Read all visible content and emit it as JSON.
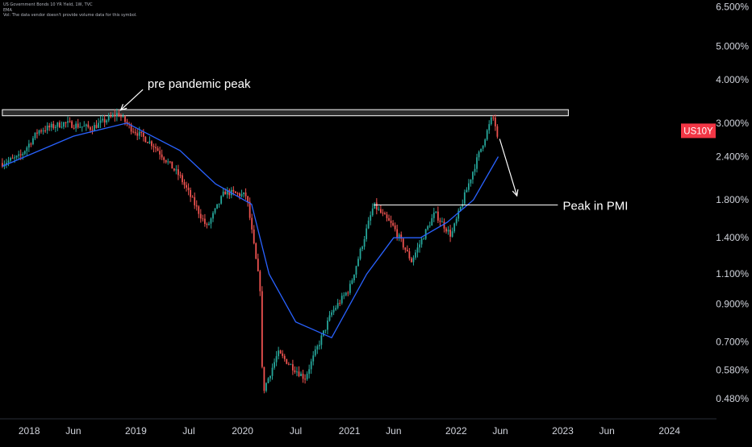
{
  "legend": {
    "symbol_line": "US Government Bonds 10 YR Yield, 1W, TVC",
    "indicator": "EMA",
    "volume_note": "Vol: The data vendor doesn't provide volume data for this symbol."
  },
  "colors": {
    "background": "#000000",
    "up_candle": "#26a69a",
    "down_candle": "#ef5350",
    "ema_line": "#2962ff",
    "axis_text": "#d1d4dc",
    "price_badge": "#f23645",
    "annotation": "#ffffff"
  },
  "chart_data": {
    "type": "candlestick",
    "symbol": "US10Y",
    "timeframe": "1W",
    "y_scale": "log",
    "ylim": [
      0.42,
      6.8
    ],
    "y_ticks": [
      "6.500%",
      "5.000%",
      "4.000%",
      "3.000%",
      "2.400%",
      "1.800%",
      "1.400%",
      "1.100%",
      "0.900%",
      "0.700%",
      "0.580%",
      "0.480%"
    ],
    "x_ticks": [
      "2018",
      "Jun",
      "2019",
      "Jul",
      "2020",
      "Jul",
      "2021",
      "Jun",
      "2022",
      "Jun",
      "2023",
      "Jun",
      "2024"
    ],
    "price_label": "US10Y",
    "path_points": [
      [
        "2017-10-01",
        2.3
      ],
      [
        "2017-12-01",
        2.4
      ],
      [
        "2018-02-01",
        2.85
      ],
      [
        "2018-05-01",
        3.0
      ],
      [
        "2018-08-01",
        2.9
      ],
      [
        "2018-11-01",
        3.2
      ],
      [
        "2018-12-15",
        2.9
      ],
      [
        "2019-03-01",
        2.6
      ],
      [
        "2019-06-01",
        2.1
      ],
      [
        "2019-09-01",
        1.5
      ],
      [
        "2019-11-01",
        1.9
      ],
      [
        "2020-01-15",
        1.85
      ],
      [
        "2020-03-01",
        1.0
      ],
      [
        "2020-03-10",
        0.5
      ],
      [
        "2020-05-01",
        0.65
      ],
      [
        "2020-08-01",
        0.55
      ],
      [
        "2020-11-01",
        0.85
      ],
      [
        "2021-01-01",
        1.0
      ],
      [
        "2021-03-25",
        1.74
      ],
      [
        "2021-06-01",
        1.5
      ],
      [
        "2021-08-01",
        1.2
      ],
      [
        "2021-10-20",
        1.65
      ],
      [
        "2021-12-15",
        1.42
      ],
      [
        "2022-03-01",
        2.2
      ],
      [
        "2022-05-06",
        3.15
      ],
      [
        "2022-05-25",
        2.74
      ]
    ],
    "ema_points": [
      [
        "2017-10-01",
        2.25
      ],
      [
        "2018-06-01",
        2.75
      ],
      [
        "2018-12-01",
        3.0
      ],
      [
        "2019-06-01",
        2.5
      ],
      [
        "2019-10-01",
        2.0
      ],
      [
        "2020-02-01",
        1.75
      ],
      [
        "2020-04-01",
        1.1
      ],
      [
        "2020-07-01",
        0.8
      ],
      [
        "2020-11-01",
        0.72
      ],
      [
        "2021-03-01",
        1.1
      ],
      [
        "2021-06-01",
        1.4
      ],
      [
        "2021-09-01",
        1.4
      ],
      [
        "2021-12-01",
        1.55
      ],
      [
        "2022-03-01",
        1.8
      ],
      [
        "2022-05-25",
        2.4
      ]
    ],
    "resistance_band": {
      "date_from": "2017-10-01",
      "date_to": "2023-01-20",
      "low": 3.15,
      "high": 3.28
    },
    "pmi_line": {
      "date_from": "2021-03-25",
      "date_to": "2022-12-15",
      "value": 1.74
    },
    "annotations": [
      {
        "text": "pre pandemic peak",
        "date": "2019-02-10",
        "value": 3.9
      },
      {
        "text": "Peak in PMI",
        "date": "2023-01-01",
        "value": 1.74
      }
    ],
    "arrows": [
      {
        "from_date": "2019-01-25",
        "from_value": 3.75,
        "to_date": "2018-11-10",
        "to_value": 3.27
      },
      {
        "from_date": "2022-05-30",
        "from_value": 2.7,
        "to_date": "2022-07-28",
        "to_value": 1.85
      }
    ],
    "last_price": 2.85
  }
}
